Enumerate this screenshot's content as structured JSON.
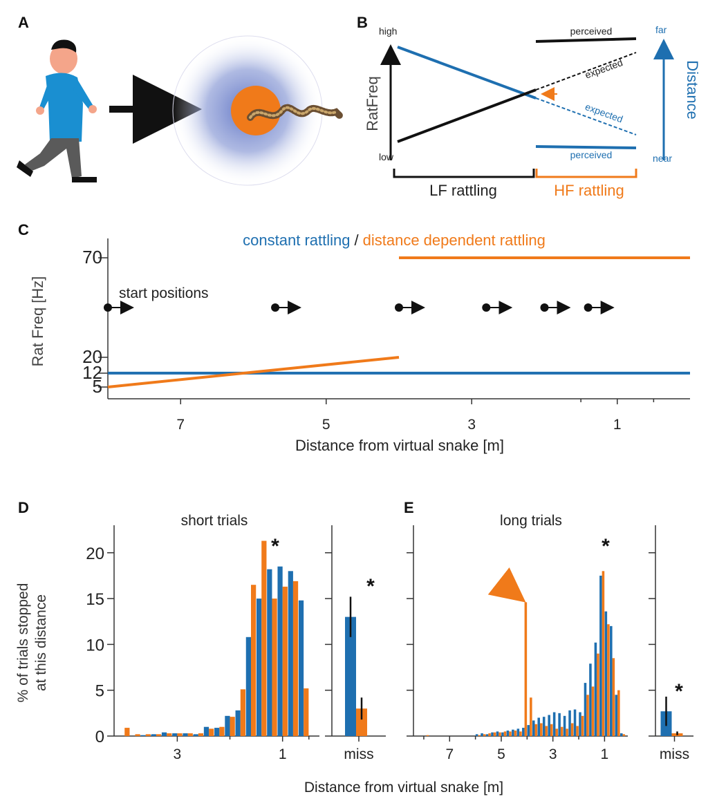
{
  "colors": {
    "blue": "#1e6fb0",
    "orange": "#f07a1a",
    "black": "#111111",
    "person_shirt": "#1a8fd1",
    "person_pants": "#5a5a5a",
    "person_skin": "#f4a58a",
    "halo": "#7b8fcf"
  },
  "panels": {
    "A": "A",
    "B": "B",
    "C": "C",
    "D": "D",
    "E": "E"
  },
  "panel_b": {
    "y_axis_label": "RatFreq",
    "high": "high",
    "low": "low",
    "right_axis_label": "Distance",
    "far": "far",
    "near": "near",
    "perceived_top": "perceived",
    "perceived_bottom": "perceived",
    "expected_black": "expected",
    "expected_blue": "expected",
    "lf_label": "LF rattling",
    "hf_label": "HF rattling"
  },
  "chart_data": [
    {
      "id": "C",
      "type": "line",
      "title_part1": "constant rattling",
      "title_sep": "/",
      "title_part2": "distance dependent rattling",
      "xlabel": "Distance from virtual snake [m]",
      "ylabel": "Rat Freq [Hz]",
      "xlim": [
        8,
        0
      ],
      "xticks": [
        7,
        5,
        3,
        1
      ],
      "xtick_labels": [
        "7",
        "5",
        "3",
        "1"
      ],
      "yticks": [
        5,
        12,
        20,
        70
      ],
      "ytick_labels": [
        "5",
        "12",
        "20",
        "70"
      ],
      "start_positions_label": "start positions",
      "start_positions": [
        8,
        5.7,
        4,
        2.8,
        2,
        1.4
      ],
      "series": [
        {
          "name": "constant rattling",
          "color": "blue",
          "segments": [
            {
              "x": [
                8,
                0
              ],
              "y": [
                12,
                12
              ]
            }
          ]
        },
        {
          "name": "distance dependent rattling",
          "color": "orange",
          "segments": [
            {
              "x": [
                8,
                4
              ],
              "y": [
                5,
                20
              ]
            },
            {
              "x": [
                4,
                0
              ],
              "y": [
                70,
                70
              ]
            }
          ]
        }
      ]
    },
    {
      "id": "D",
      "type": "bar",
      "title": "short trials",
      "ylabel_line1": "% of trials stopped",
      "ylabel_line2": "at this distance",
      "ylim": [
        0,
        23
      ],
      "yticks": [
        0,
        5,
        10,
        15,
        20
      ],
      "ytick_labels": [
        "0",
        "5",
        "10",
        "15",
        "20"
      ],
      "xlim": [
        4.2,
        0.3
      ],
      "xticks": [
        3,
        1
      ],
      "xtick_labels": [
        "3",
        "1"
      ],
      "star": "*",
      "bin_centers": [
        4.0,
        3.8,
        3.6,
        3.4,
        3.2,
        3.0,
        2.8,
        2.6,
        2.4,
        2.2,
        2.0,
        1.8,
        1.6,
        1.4,
        1.2,
        1.0,
        0.8,
        0.6,
        0.4
      ],
      "series": [
        {
          "name": "constant",
          "color": "blue",
          "values": [
            0,
            0,
            0.1,
            0.2,
            0.4,
            0.3,
            0.3,
            0.2,
            1.0,
            0.9,
            2.2,
            2.8,
            10.8,
            15.0,
            18.2,
            18.5,
            18.0,
            14.8,
            0
          ]
        },
        {
          "name": "distance dependent",
          "color": "orange",
          "values": [
            0.9,
            0.2,
            0.2,
            0.2,
            0.3,
            0.3,
            0.3,
            0.3,
            0.8,
            1.0,
            2.1,
            5.1,
            16.5,
            21.3,
            15.0,
            16.3,
            16.9,
            5.2,
            0
          ]
        }
      ],
      "miss": {
        "label": "miss",
        "star": "*",
        "values": {
          "constant": 13.0,
          "distance_dependent": 3.0
        },
        "errors": {
          "constant": 2.2,
          "distance_dependent": 1.2
        }
      }
    },
    {
      "id": "E",
      "type": "bar",
      "title": "long trials",
      "ylim": [
        0,
        23
      ],
      "yticks": [
        0,
        5,
        10,
        15,
        20
      ],
      "xlim": [
        8.4,
        0.1
      ],
      "xticks": [
        7,
        5,
        3,
        1
      ],
      "xtick_labels": [
        "7",
        "5",
        "3",
        "1"
      ],
      "star": "*",
      "bin_centers": [
        7.9,
        7.7,
        7.5,
        7.3,
        7.1,
        6.9,
        6.7,
        6.5,
        6.3,
        6.1,
        5.9,
        5.7,
        5.5,
        5.3,
        5.1,
        4.9,
        4.7,
        4.5,
        4.3,
        4.1,
        3.9,
        3.7,
        3.5,
        3.3,
        3.1,
        2.9,
        2.7,
        2.5,
        2.3,
        2.1,
        1.9,
        1.7,
        1.5,
        1.3,
        1.1,
        0.9,
        0.7,
        0.5,
        0.3
      ],
      "series": [
        {
          "name": "constant",
          "color": "blue",
          "values": [
            0,
            0,
            0,
            0,
            0,
            0,
            0,
            0,
            0,
            0,
            0.2,
            0.3,
            0.2,
            0.4,
            0.5,
            0.4,
            0.6,
            0.7,
            0.8,
            0.9,
            1.2,
            1.7,
            2.0,
            2.1,
            2.3,
            2.6,
            2.5,
            2.2,
            2.8,
            2.9,
            2.6,
            5.8,
            7.9,
            10.2,
            17.5,
            13.6,
            12.0,
            4.5,
            0.3
          ]
        },
        {
          "name": "distance dependent",
          "color": "orange",
          "values": [
            0.1,
            0,
            0,
            0,
            0,
            0,
            0,
            0,
            0,
            0,
            0.1,
            0.2,
            0.3,
            0.4,
            0.4,
            0.5,
            0.5,
            0.6,
            0.5,
            14.6,
            4.2,
            1.3,
            1.4,
            1.1,
            1.3,
            0.8,
            1.0,
            0.8,
            1.4,
            1.1,
            2.2,
            4.5,
            5.4,
            9.0,
            18.0,
            12.2,
            8.5,
            5.0,
            0.2
          ]
        }
      ],
      "arrow_at_bin": 4.1,
      "miss": {
        "label": "miss",
        "star": "*",
        "values": {
          "constant": 2.7,
          "distance_dependent": 0.3
        },
        "errors": {
          "constant": 1.6,
          "distance_dependent": 0.2
        }
      }
    }
  ],
  "shared_xlabel": "Distance from virtual snake [m]"
}
